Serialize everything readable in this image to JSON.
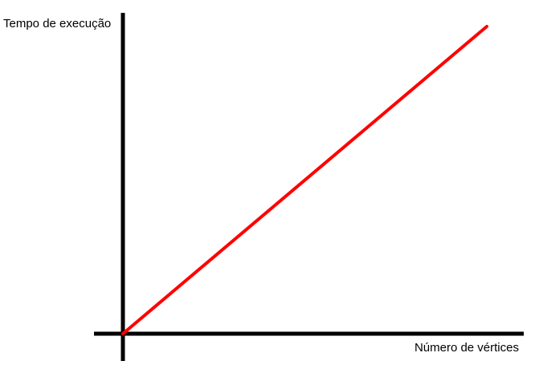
{
  "chart_data": {
    "type": "line",
    "title": "",
    "xlabel": "Número de vértices",
    "ylabel": "Tempo de execução",
    "grid": false,
    "legend": "none",
    "tick_labels": false,
    "series": [
      {
        "color": "#ff0000",
        "x": [
          0,
          1
        ],
        "y": [
          0,
          1
        ]
      }
    ],
    "xlim": [
      0,
      1
    ],
    "ylim": [
      0,
      1
    ],
    "axis_color": "#000000"
  }
}
